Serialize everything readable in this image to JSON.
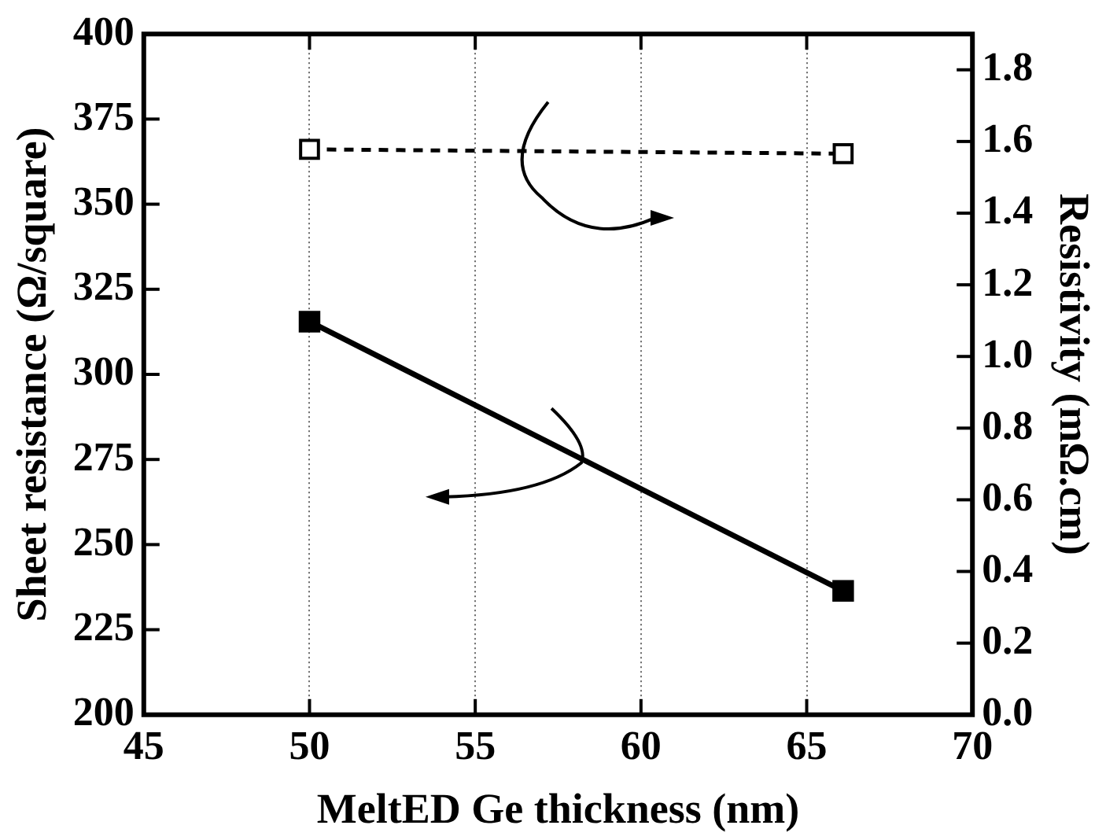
{
  "chart_data": {
    "type": "line",
    "xlabel": "MeltED Ge thickness (nm)",
    "ylabel": "Sheet resistance (Ω/square)",
    "y2label": "Resistivity (mΩ.cm)",
    "x": [
      50,
      66.1
    ],
    "series": [
      {
        "color": "#000000",
        "values": [
          315.5,
          236.4
        ],
        "line_style": "solid"
      },
      {
        "color": "#000000",
        "values": [
          1.578,
          1.566
        ],
        "axis": "y2",
        "line_style": "dashed"
      }
    ],
    "xlim": [
      45,
      70
    ],
    "xticks": [
      45,
      50,
      55,
      60,
      65,
      70
    ],
    "ylim": [
      200,
      400
    ],
    "yticks": [
      200,
      225,
      250,
      275,
      300,
      325,
      350,
      375,
      400
    ],
    "y2lim": [
      0,
      1.9
    ],
    "y2ticks": [
      {
        "value": 0,
        "label": "0.0"
      },
      0.2,
      0.4,
      0.6,
      0.8,
      {
        "value": 1,
        "label": "1.0"
      },
      1.2,
      1.4,
      1.6,
      1.8
    ],
    "grid": "x",
    "legend": false,
    "marker": "square"
  }
}
